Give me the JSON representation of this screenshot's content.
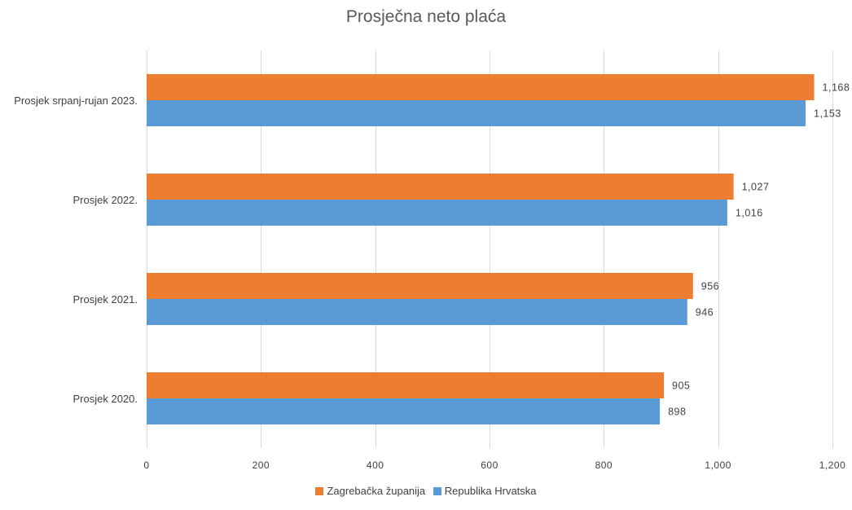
{
  "chart_data": {
    "type": "bar",
    "orientation": "horizontal",
    "title": "Prosječna neto plaća",
    "categories": [
      "Prosjek srpanj-rujan 2023.",
      "Prosjek 2022.",
      "Prosjek 2021.",
      "Prosjek 2020."
    ],
    "series": [
      {
        "name": "Zagrebačka županija",
        "color": "#ed7d31",
        "values": [
          1168,
          1027,
          956,
          905
        ]
      },
      {
        "name": "Republika Hrvatska",
        "color": "#5b9bd5",
        "values": [
          1153,
          1016,
          946,
          898
        ]
      }
    ],
    "xlim": [
      0,
      1200
    ],
    "ticks": [
      0,
      200,
      400,
      600,
      800,
      1000,
      1200
    ],
    "tick_labels": [
      "0",
      "200",
      "400",
      "600",
      "800",
      "1,000",
      "1,200"
    ],
    "data_labels": [
      [
        "1,168",
        "1,027",
        "956",
        "905"
      ],
      [
        "1,153",
        "1,016",
        "946",
        "898"
      ]
    ],
    "grid": true,
    "legend": "bottom"
  }
}
